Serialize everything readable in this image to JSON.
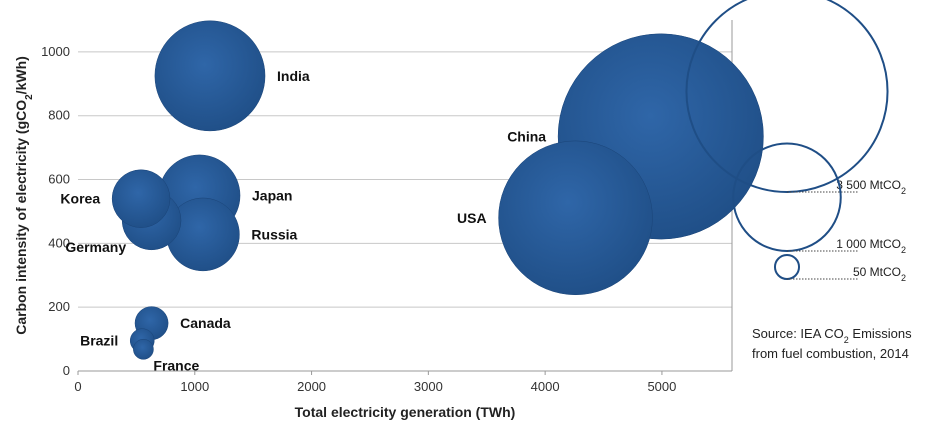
{
  "chart_data": {
    "type": "scatter",
    "xlabel": "Total electricity generation (TWh)",
    "ylabel_parts": [
      "Carbon intensity of electricity (gCO",
      "2",
      "/kWh)"
    ],
    "xlim": [
      0,
      5600
    ],
    "ylim": [
      0,
      1100
    ],
    "xticks": [
      0,
      1000,
      2000,
      3000,
      4000,
      5000
    ],
    "yticks": [
      0,
      200,
      400,
      600,
      800,
      1000
    ],
    "grid": "horizontal",
    "bubble_color": "#1f4e86",
    "points": [
      {
        "label": "India",
        "x": 1130,
        "y": 925,
        "size_mtco2": 1050,
        "label_pos": "right"
      },
      {
        "label": "China",
        "x": 4990,
        "y": 735,
        "size_mtco2": 3650,
        "label_pos": "left"
      },
      {
        "label": "Korea",
        "x": 540,
        "y": 540,
        "size_mtco2": 290,
        "label_pos": "left"
      },
      {
        "label": "Japan",
        "x": 1040,
        "y": 550,
        "size_mtco2": 570,
        "label_pos": "right"
      },
      {
        "label": "Germany",
        "x": 630,
        "y": 472,
        "size_mtco2": 300,
        "label_pos": "below-left"
      },
      {
        "label": "USA",
        "x": 4260,
        "y": 480,
        "size_mtco2": 2050,
        "label_pos": "left"
      },
      {
        "label": "Russia",
        "x": 1070,
        "y": 428,
        "size_mtco2": 460,
        "label_pos": "right"
      },
      {
        "label": "Canada",
        "x": 630,
        "y": 150,
        "size_mtco2": 95,
        "label_pos": "right"
      },
      {
        "label": "Brazil",
        "x": 550,
        "y": 95,
        "size_mtco2": 50,
        "label_pos": "left"
      },
      {
        "label": "France",
        "x": 560,
        "y": 68,
        "size_mtco2": 35,
        "label_pos": "below-right"
      }
    ],
    "legend": [
      {
        "value_text": "3 500 MtCO",
        "sub": "2",
        "mtco2": 3500
      },
      {
        "value_text": "1 000 MtCO",
        "sub": "2",
        "mtco2": 1000
      },
      {
        "value_text": "50 MtCO",
        "sub": "2",
        "mtco2": 50
      }
    ],
    "source_lines": [
      {
        "pre": "Source: IEA CO",
        "sub": "2",
        "post": " Emissions"
      },
      {
        "pre": "from fuel combustion, 2014",
        "sub": "",
        "post": ""
      }
    ]
  }
}
